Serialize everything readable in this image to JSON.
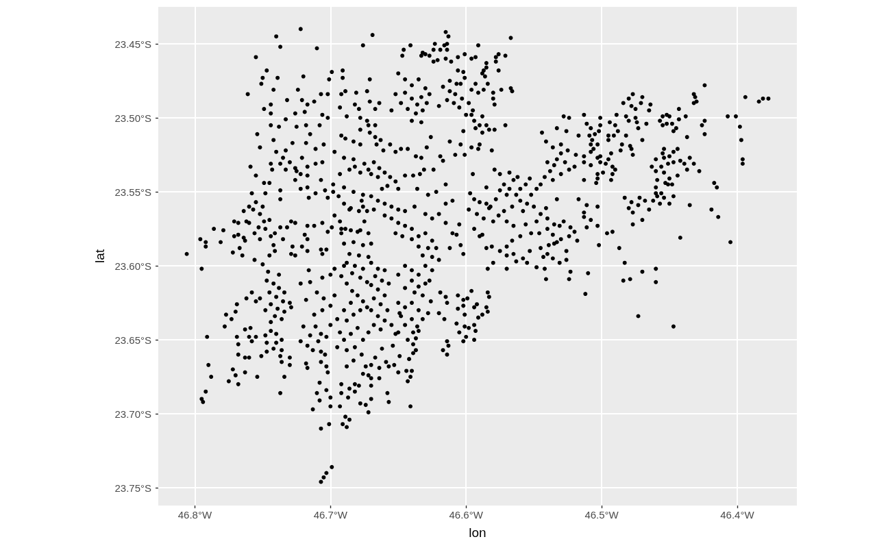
{
  "chart_data": {
    "type": "scatter",
    "xlabel": "lon",
    "ylabel": "lat",
    "xlim": [
      -46.827,
      -46.356
    ],
    "ylim": [
      -23.762,
      -23.425
    ],
    "xticks": [
      {
        "value": -46.8,
        "label": "46.8°W"
      },
      {
        "value": -46.7,
        "label": "46.7°W"
      },
      {
        "value": -46.6,
        "label": "46.6°W"
      },
      {
        "value": -46.5,
        "label": "46.5°W"
      },
      {
        "value": -46.4,
        "label": "46.4°W"
      }
    ],
    "yticks": [
      {
        "value": -23.75,
        "label": "23.75°S"
      },
      {
        "value": -23.7,
        "label": "23.70°S"
      },
      {
        "value": -23.65,
        "label": "23.65°S"
      },
      {
        "value": -23.6,
        "label": "23.60°S"
      },
      {
        "value": -23.55,
        "label": "23.55°S"
      },
      {
        "value": -23.5,
        "label": "23.50°S"
      },
      {
        "value": -23.45,
        "label": "23.45°S"
      }
    ],
    "grid": true,
    "marker": "circle",
    "series": [
      {
        "color": "#000000",
        "x": [
          -46.806,
          -46.796,
          -46.792,
          -46.792,
          -46.795,
          -46.786,
          -46.779,
          -46.781,
          -46.791,
          -46.79,
          -46.788,
          -46.792,
          -46.795,
          -46.794,
          -46.722,
          -46.74,
          -46.737,
          -46.71,
          -46.755,
          -46.747,
          -46.75,
          -46.751,
          -46.739,
          -46.761,
          -46.742,
          -46.72,
          -46.744,
          -46.744,
          -46.749,
          -46.744,
          -46.754,
          -46.752,
          -46.742,
          -46.733,
          -46.738,
          -46.732,
          -46.724,
          -46.721,
          -46.717,
          -46.726,
          -46.719,
          -46.725,
          -46.718,
          -46.715,
          -46.712,
          -46.707,
          -46.702,
          -46.706,
          -46.702,
          -46.708,
          -46.699,
          -46.691,
          -46.701,
          -46.691,
          -46.692,
          -46.689,
          -46.693,
          -46.688,
          -46.681,
          -46.679,
          -46.678,
          -46.682,
          -46.676,
          -46.669,
          -46.671,
          -46.673,
          -46.678,
          -46.672,
          -46.692,
          -46.689,
          -46.683,
          -46.678,
          -46.705,
          -46.711,
          -46.718,
          -46.728,
          -46.74,
          -46.735,
          -46.73,
          -46.726,
          -46.722,
          -46.733,
          -46.737,
          -46.733,
          -46.725,
          -46.717,
          -46.717,
          -46.721,
          -46.706,
          -46.707,
          -46.711,
          -46.726,
          -46.722,
          -46.716,
          -46.711,
          -46.704,
          -46.702,
          -46.717,
          -46.697,
          -46.69,
          -46.683,
          -46.675,
          -46.672,
          -46.678,
          -46.686,
          -46.693,
          -46.682,
          -46.698,
          -46.69,
          -46.683,
          -46.676,
          -46.698,
          -46.694,
          -46.69,
          -46.685,
          -46.679,
          -46.676,
          -46.677,
          -46.697,
          -46.693,
          -46.692,
          -46.686,
          -46.673,
          -46.668,
          -46.675,
          -46.699,
          -46.689,
          -46.68,
          -46.758,
          -46.76,
          -46.757,
          -46.755,
          -46.749,
          -46.745,
          -46.748,
          -46.755,
          -46.759,
          -46.744,
          -46.743,
          -46.737,
          -46.737,
          -46.764,
          -46.752,
          -46.75,
          -46.771,
          -46.768,
          -46.762,
          -46.76,
          -46.771,
          -46.768,
          -46.764,
          -46.763,
          -46.767,
          -46.772,
          -46.765,
          -46.756,
          -46.752,
          -46.753,
          -46.749,
          -46.745,
          -46.748,
          -46.744,
          -46.741,
          -46.737,
          -46.742,
          -46.741,
          -46.745,
          -46.735,
          -46.732,
          -46.729,
          -46.726,
          -46.717,
          -46.712,
          -46.706,
          -46.702,
          -46.719,
          -46.717,
          -46.721,
          -46.717,
          -46.728,
          -46.729,
          -46.726,
          -46.707,
          -46.703,
          -46.706,
          -46.692,
          -46.685,
          -46.678,
          -46.672,
          -46.69,
          -46.683,
          -46.676,
          -46.67,
          -46.686,
          -46.679,
          -46.672,
          -46.615,
          -46.613,
          -46.614,
          -46.616,
          -46.614,
          -46.623,
          -46.624,
          -46.619,
          -46.641,
          -46.646,
          -46.647,
          -46.632,
          -46.63,
          -46.627,
          -46.633,
          -46.624,
          -46.621,
          -46.615,
          -46.611,
          -46.606,
          -46.601,
          -46.596,
          -46.593,
          -46.591,
          -46.578,
          -46.576,
          -46.571,
          -46.578,
          -46.585,
          -46.585,
          -46.576,
          -46.587,
          -46.588,
          -46.586,
          -46.567,
          -46.574,
          -46.567,
          -46.566,
          -46.58,
          -46.58,
          -46.579,
          -46.584,
          -46.587,
          -46.591,
          -46.593,
          -46.596,
          -46.601,
          -46.602,
          -46.606,
          -46.612,
          -46.607,
          -46.604,
          -46.65,
          -46.645,
          -46.64,
          -46.635,
          -46.63,
          -46.645,
          -46.64,
          -46.633,
          -46.627,
          -46.636,
          -46.629,
          -46.643,
          -46.637,
          -46.632,
          -46.648,
          -46.652,
          -46.655,
          -46.64,
          -46.633,
          -46.617,
          -46.612,
          -46.608,
          -46.603,
          -46.614,
          -46.609,
          -46.605,
          -46.62,
          -46.598,
          -46.595,
          -46.6,
          -46.596,
          -46.588,
          -46.594,
          -46.593,
          -46.59,
          -46.585,
          -46.583,
          -46.579,
          -46.588,
          -46.602,
          -46.596,
          -46.591,
          -46.59,
          -46.571,
          -46.604,
          -46.608,
          -46.601,
          -46.612,
          -46.626,
          -46.629,
          -46.637,
          -46.633,
          -46.619,
          -46.617,
          -46.631,
          -46.624,
          -46.634,
          -46.643,
          -46.648,
          -46.652,
          -46.656,
          -46.666,
          -46.661,
          -46.671,
          -46.667,
          -46.663,
          -46.667,
          -46.673,
          -46.671,
          -46.664,
          -46.667,
          -46.668,
          -46.664,
          -46.66,
          -46.656,
          -46.652,
          -46.665,
          -46.67,
          -46.658,
          -46.662,
          -46.65,
          -46.645,
          -46.639,
          -46.67,
          -46.665,
          -46.66,
          -46.655,
          -46.65,
          -46.645,
          -46.66,
          -46.655,
          -46.65,
          -46.645,
          -46.64,
          -46.652,
          -46.647,
          -46.64,
          -46.635,
          -46.63,
          -46.625,
          -46.635,
          -46.628,
          -46.622,
          -46.632,
          -46.625,
          -46.62,
          -46.638,
          -46.63,
          -46.625,
          -46.62,
          -46.615,
          -46.636,
          -46.628,
          -46.622,
          -46.615,
          -46.61,
          -46.615,
          -46.605,
          -46.607,
          -46.604,
          -46.602,
          -46.61,
          -46.612,
          -46.597,
          -46.594,
          -46.59,
          -46.585,
          -46.598,
          -46.592,
          -46.587,
          -46.582,
          -46.578,
          -46.575,
          -46.572,
          -46.568,
          -46.565,
          -46.57,
          -46.563,
          -46.56,
          -46.566,
          -46.572,
          -46.576,
          -46.58,
          -46.57,
          -46.565,
          -46.558,
          -46.555,
          -46.552,
          -46.548,
          -46.545,
          -46.542,
          -46.538,
          -46.535,
          -46.54,
          -46.533,
          -46.53,
          -46.527,
          -46.524,
          -46.52,
          -46.53,
          -46.536,
          -46.55,
          -46.545,
          -46.54,
          -46.548,
          -46.556,
          -46.552,
          -46.546,
          -46.54,
          -46.535,
          -46.528,
          -46.56,
          -46.566,
          -46.57,
          -46.575,
          -46.565,
          -46.558,
          -46.553,
          -46.545,
          -46.54,
          -46.535,
          -46.53,
          -46.524,
          -46.52,
          -46.518,
          -46.526,
          -46.58,
          -46.585,
          -46.59,
          -46.594,
          -46.544,
          -46.533,
          -46.526,
          -46.517,
          -46.528,
          -46.524,
          -46.513,
          -46.541,
          -46.536,
          -46.53,
          -46.525,
          -46.519,
          -46.595,
          -46.579,
          -46.581,
          -46.585,
          -46.583,
          -46.588,
          -46.581,
          -46.57,
          -46.533,
          -46.517,
          -46.513,
          -46.523,
          -46.531,
          -46.536,
          -46.539,
          -46.533,
          -46.541,
          -46.575,
          -46.568,
          -46.562,
          -46.556,
          -46.56,
          -46.553,
          -46.424,
          -46.432,
          -46.431,
          -46.432,
          -46.43,
          -46.394,
          -46.384,
          -46.381,
          -46.377,
          -46.407,
          -46.401,
          -46.398,
          -46.397,
          -46.396,
          -46.396,
          -46.424,
          -46.426,
          -46.424,
          -46.438,
          -46.437,
          -46.443,
          -46.443,
          -46.445,
          -46.447,
          -46.452,
          -46.45,
          -46.455,
          -46.457,
          -46.455,
          -46.452,
          -46.448,
          -46.477,
          -46.48,
          -46.484,
          -46.478,
          -46.475,
          -46.47,
          -46.471,
          -46.464,
          -46.465,
          -46.482,
          -46.48,
          -46.475,
          -46.474,
          -46.473,
          -46.467,
          -46.47,
          -46.489,
          -46.494,
          -46.49,
          -46.488,
          -46.501,
          -46.501,
          -46.502,
          -46.491,
          -46.495,
          -46.495,
          -46.482,
          -46.485,
          -46.479,
          -46.478,
          -46.477,
          -46.486,
          -46.493,
          -46.495,
          -46.497,
          -46.492,
          -46.49,
          -46.492,
          -46.493,
          -46.499,
          -46.501,
          -46.501,
          -46.511,
          -46.508,
          -46.505,
          -46.509,
          -46.507,
          -46.508,
          -46.503,
          -46.506,
          -46.508,
          -46.503,
          -46.513,
          -46.513,
          -46.508,
          -46.503,
          -46.503,
          -46.504,
          -46.513,
          -46.454,
          -46.455,
          -46.454,
          -46.45,
          -46.447,
          -46.444,
          -46.46,
          -46.463,
          -46.46,
          -46.456,
          -46.451,
          -46.447,
          -46.442,
          -46.454,
          -46.444,
          -46.459,
          -46.453,
          -46.451,
          -46.45,
          -46.448,
          -46.46,
          -46.46,
          -46.456,
          -46.459,
          -46.454,
          -46.447,
          -46.462,
          -46.457,
          -46.45,
          -46.439,
          -46.435,
          -46.432,
          -46.428,
          -46.437,
          -46.417,
          -46.415,
          -46.435,
          -46.419,
          -46.414,
          -46.442,
          -46.405,
          -46.483,
          -46.478,
          -46.48,
          -46.473,
          -46.472,
          -46.468,
          -46.477,
          -46.47,
          -46.465,
          -46.477,
          -46.511,
          -46.503,
          -46.513,
          -46.508,
          -46.503,
          -46.511,
          -46.496,
          -46.492,
          -46.502,
          -46.487,
          -46.483,
          -46.51,
          -46.512,
          -46.47,
          -46.46,
          -46.484,
          -46.479,
          -46.46,
          -46.473,
          -46.447,
          -46.584,
          -46.555,
          -46.548,
          -46.542,
          -46.541,
          -46.543,
          -46.536,
          -46.531,
          -46.526,
          -46.523,
          -46.524,
          -46.57,
          -46.563,
          -46.584,
          -46.583,
          -46.585,
          -46.584,
          -46.588,
          -46.591,
          -46.594,
          -46.592,
          -46.594,
          -46.593,
          -46.594,
          -46.598,
          -46.601,
          -46.6,
          -46.602,
          -46.605,
          -46.607,
          -46.601,
          -46.602,
          -46.599,
          -46.596,
          -46.614,
          -46.613,
          -46.617,
          -46.614,
          -46.616,
          -46.62,
          -46.628,
          -46.632,
          -46.636,
          -46.635,
          -46.639,
          -46.637,
          -46.643,
          -46.639,
          -46.637,
          -46.639,
          -46.642,
          -46.649,
          -46.653,
          -46.657,
          -46.659,
          -46.664,
          -46.65,
          -46.644,
          -46.64,
          -46.641,
          -46.643,
          -46.664,
          -46.658,
          -46.657,
          -46.641,
          -46.67,
          -46.649,
          -46.65,
          -46.654,
          -46.662,
          -46.667,
          -46.67,
          -46.67,
          -46.67,
          -46.619,
          -46.615,
          -46.614,
          -46.606,
          -46.602,
          -46.606,
          -46.626,
          -46.67,
          -46.665,
          -46.66,
          -46.667,
          -46.662,
          -46.657,
          -46.67,
          -46.665,
          -46.66,
          -46.668,
          -46.663,
          -46.67,
          -46.665,
          -46.66,
          -46.668,
          -46.663,
          -46.658,
          -46.65,
          -46.645,
          -46.64,
          -46.635,
          -46.63,
          -46.625,
          -46.64,
          -46.635,
          -46.63,
          -46.638,
          -46.632,
          -46.627,
          -46.645,
          -46.65,
          -46.645,
          -46.64,
          -46.635,
          -46.64,
          -46.645,
          -46.648,
          -46.655,
          -46.652,
          -46.756,
          -46.75,
          -46.762,
          -46.758,
          -46.755,
          -46.769,
          -46.77,
          -46.777,
          -46.773,
          -46.778,
          -46.759,
          -46.763,
          -46.769,
          -46.768,
          -46.76,
          -46.758,
          -46.755,
          -46.768,
          -46.763,
          -46.76,
          -46.772,
          -46.77,
          -46.775,
          -46.768,
          -46.763,
          -46.754,
          -46.751,
          -46.747,
          -46.747,
          -46.748,
          -46.744,
          -46.74,
          -46.744,
          -46.742,
          -46.74,
          -46.736,
          -46.736,
          -46.737,
          -46.736,
          -46.73,
          -46.73,
          -46.734,
          -46.737,
          -46.722,
          -46.717,
          -46.713,
          -46.718,
          -46.717,
          -46.72,
          -46.711,
          -46.715,
          -46.709,
          -46.707,
          -46.707,
          -46.704,
          -46.707,
          -46.703,
          -46.702,
          -46.708,
          -46.71,
          -46.708,
          -46.703,
          -46.7,
          -46.7,
          -46.713,
          -46.707,
          -46.701,
          -46.699,
          -46.703,
          -46.705,
          -46.707,
          -46.689,
          -46.686,
          -46.691,
          -46.688,
          -46.693,
          -46.687,
          -46.692,
          -46.692,
          -46.686,
          -46.682,
          -46.678,
          -46.674,
          -46.672,
          -46.679,
          -46.682,
          -46.672,
          -46.747,
          -46.742,
          -46.738,
          -46.734,
          -46.745,
          -46.74,
          -46.735,
          -46.73,
          -46.744,
          -46.739,
          -46.734,
          -46.729,
          -46.741,
          -46.736,
          -46.748,
          -46.746,
          -46.738,
          -46.752,
          -46.715,
          -46.71,
          -46.705,
          -46.7,
          -46.706,
          -46.712,
          -46.718,
          -46.722,
          -46.716,
          -46.706,
          -46.7,
          -46.697,
          -46.692,
          -46.688,
          -46.684,
          -46.68,
          -46.676,
          -46.685,
          -46.69,
          -46.695,
          -46.688,
          -46.683,
          -46.678,
          -46.673,
          -46.68,
          -46.685,
          -46.69,
          -46.695,
          -46.688,
          -46.682,
          -46.676,
          -46.672,
          -46.677,
          -46.683,
          -46.688,
          -46.674,
          -46.676,
          -46.693,
          -46.697,
          -46.7,
          -46.703,
          -46.688,
          -46.682,
          -46.676,
          -46.684,
          -46.678,
          -46.673,
          -46.69
        ],
        "values": [
          -23.592,
          -23.582,
          -23.584,
          -23.587,
          -23.602,
          -23.575,
          -23.576,
          -23.584,
          -23.648,
          -23.667,
          -23.675,
          -23.685,
          -23.69,
          -23.692,
          -23.44,
          -23.445,
          -23.452,
          -23.453,
          -23.459,
          -23.468,
          -23.473,
          -23.477,
          -23.473,
          -23.484,
          -23.481,
          -23.472,
          -23.491,
          -23.497,
          -23.494,
          -23.505,
          -23.511,
          -23.52,
          -23.515,
          -23.501,
          -23.506,
          -23.488,
          -23.481,
          -23.488,
          -23.491,
          -23.497,
          -23.496,
          -23.506,
          -23.505,
          -23.511,
          -23.489,
          -23.484,
          -23.484,
          -23.498,
          -23.5,
          -23.505,
          -23.469,
          -23.468,
          -23.474,
          -23.473,
          -23.484,
          -23.482,
          -23.493,
          -23.499,
          -23.483,
          -23.494,
          -23.5,
          -23.491,
          -23.451,
          -23.444,
          -23.474,
          -23.482,
          -23.508,
          -23.505,
          -23.512,
          -23.514,
          -23.516,
          -23.518,
          -23.518,
          -23.521,
          -23.517,
          -23.517,
          -23.523,
          -23.527,
          -23.53,
          -23.534,
          -23.538,
          -23.522,
          -23.531,
          -23.535,
          -23.536,
          -23.533,
          -23.539,
          -23.527,
          -23.53,
          -23.542,
          -23.531,
          -23.542,
          -23.548,
          -23.554,
          -23.551,
          -23.549,
          -23.554,
          -23.547,
          -23.523,
          -23.527,
          -23.528,
          -23.531,
          -23.535,
          -23.537,
          -23.535,
          -23.538,
          -23.533,
          -23.545,
          -23.547,
          -23.55,
          -23.552,
          -23.55,
          -23.553,
          -23.558,
          -23.561,
          -23.563,
          -23.56,
          -23.556,
          -23.566,
          -23.57,
          -23.575,
          -23.562,
          -23.563,
          -23.562,
          -23.57,
          -23.574,
          -23.575,
          -23.577,
          -23.551,
          -23.56,
          -23.562,
          -23.557,
          -23.544,
          -23.544,
          -23.551,
          -23.539,
          -23.533,
          -23.531,
          -23.535,
          -23.549,
          -23.555,
          -23.563,
          -23.565,
          -23.56,
          -23.57,
          -23.571,
          -23.57,
          -23.571,
          -23.58,
          -23.579,
          -23.581,
          -23.583,
          -23.588,
          -23.591,
          -23.593,
          -23.578,
          -23.582,
          -23.574,
          -23.57,
          -23.569,
          -23.575,
          -23.58,
          -23.578,
          -23.574,
          -23.586,
          -23.59,
          -23.593,
          -23.582,
          -23.574,
          -23.57,
          -23.571,
          -23.573,
          -23.573,
          -23.571,
          -23.577,
          -23.579,
          -23.582,
          -23.587,
          -23.59,
          -23.587,
          -23.592,
          -23.593,
          -23.589,
          -23.589,
          -23.592,
          -23.578,
          -23.576,
          -23.576,
          -23.578,
          -23.585,
          -23.584,
          -23.586,
          -23.585,
          -23.592,
          -23.593,
          -23.594,
          -23.442,
          -23.445,
          -23.45,
          -23.451,
          -23.454,
          -23.45,
          -23.454,
          -23.454,
          -23.451,
          -23.454,
          -23.458,
          -23.456,
          -23.457,
          -23.458,
          -23.458,
          -23.462,
          -23.461,
          -23.46,
          -23.462,
          -23.459,
          -23.457,
          -23.46,
          -23.459,
          -23.451,
          -23.459,
          -23.457,
          -23.458,
          -23.462,
          -23.463,
          -23.466,
          -23.468,
          -23.468,
          -23.47,
          -23.472,
          -23.446,
          -23.481,
          -23.48,
          -23.482,
          -23.483,
          -23.487,
          -23.491,
          -23.477,
          -23.481,
          -23.483,
          -23.477,
          -23.481,
          -23.473,
          -23.469,
          -23.468,
          -23.475,
          -23.477,
          -23.477,
          -23.47,
          -23.474,
          -23.478,
          -23.474,
          -23.48,
          -23.483,
          -23.487,
          -23.486,
          -23.484,
          -23.491,
          -23.49,
          -23.494,
          -23.497,
          -23.495,
          -23.49,
          -23.484,
          -23.495,
          -23.502,
          -23.503,
          -23.479,
          -23.482,
          -23.484,
          -23.487,
          -23.488,
          -23.49,
          -23.493,
          -23.492,
          -23.49,
          -23.495,
          -23.498,
          -23.498,
          -23.499,
          -23.502,
          -23.507,
          -23.505,
          -23.505,
          -23.508,
          -23.508,
          -23.51,
          -23.509,
          -23.52,
          -23.521,
          -23.518,
          -23.505,
          -23.518,
          -23.525,
          -23.525,
          -23.516,
          -23.513,
          -23.52,
          -23.526,
          -23.527,
          -23.526,
          -23.529,
          -23.535,
          -23.535,
          -23.538,
          -23.521,
          -23.521,
          -23.523,
          -23.518,
          -23.518,
          -23.522,
          -23.51,
          -23.513,
          -23.515,
          -23.505,
          -23.502,
          -23.489,
          -23.49,
          -23.494,
          -23.53,
          -23.534,
          -23.537,
          -23.54,
          -23.543,
          -23.54,
          -23.538,
          -23.546,
          -23.548,
          -23.548,
          -23.539,
          -23.539,
          -23.553,
          -23.556,
          -23.558,
          -23.56,
          -23.562,
          -23.563,
          -23.566,
          -23.568,
          -23.571,
          -23.573,
          -23.575,
          -23.578,
          -23.58,
          -23.582,
          -23.58,
          -23.578,
          -23.583,
          -23.587,
          -23.588,
          -23.588,
          -23.593,
          -23.594,
          -23.596,
          -23.56,
          -23.565,
          -23.568,
          -23.565,
          -23.571,
          -23.548,
          -23.552,
          -23.55,
          -23.545,
          -23.556,
          -23.558,
          -23.572,
          -23.579,
          -23.586,
          -23.592,
          -23.578,
          -23.588,
          -23.551,
          -23.555,
          -23.557,
          -23.558,
          -23.562,
          -23.565,
          -23.568,
          -23.56,
          -23.555,
          -23.549,
          -23.545,
          -23.548,
          -23.542,
          -23.552,
          -23.552,
          -23.556,
          -23.56,
          -23.563,
          -23.566,
          -23.57,
          -23.57,
          -23.573,
          -23.563,
          -23.558,
          -23.552,
          -23.548,
          -23.545,
          -23.54,
          -23.536,
          -23.532,
          -23.53,
          -23.528,
          -23.524,
          -23.53,
          -23.535,
          -23.533,
          -23.538,
          -23.542,
          -23.56,
          -23.565,
          -23.568,
          -23.57,
          -23.572,
          -23.578,
          -23.578,
          -23.575,
          -23.572,
          -23.57,
          -23.58,
          -23.583,
          -23.587,
          -23.59,
          -23.592,
          -23.595,
          -23.59,
          -23.588,
          -23.592,
          -23.585,
          -23.582,
          -23.58,
          -23.577,
          -23.583,
          -23.59,
          -23.598,
          -23.588,
          -23.58,
          -23.575,
          -23.51,
          -23.507,
          -23.509,
          -23.512,
          -23.499,
          -23.5,
          -23.498,
          -23.516,
          -23.52,
          -23.518,
          -23.522,
          -23.525,
          -23.538,
          -23.535,
          -23.522,
          -23.547,
          -23.561,
          -23.579,
          -23.587,
          -23.593,
          -23.555,
          -23.555,
          -23.564,
          -23.574,
          -23.573,
          -23.579,
          -23.586,
          -23.584,
          -23.561,
          -23.538,
          -23.537,
          -23.54,
          -23.545,
          -23.548,
          -23.541,
          -23.478,
          -23.484,
          -23.486,
          -23.49,
          -23.489,
          -23.486,
          -23.489,
          -23.487,
          -23.487,
          -23.499,
          -23.499,
          -23.506,
          -23.515,
          -23.528,
          -23.531,
          -23.502,
          -23.505,
          -23.511,
          -23.499,
          -23.513,
          -23.494,
          -23.501,
          -23.507,
          -23.509,
          -23.498,
          -23.499,
          -23.499,
          -23.502,
          -23.505,
          -23.504,
          -23.504,
          -23.484,
          -23.487,
          -23.49,
          -23.492,
          -23.494,
          -23.486,
          -23.49,
          -23.491,
          -23.495,
          -23.499,
          -23.502,
          -23.5,
          -23.503,
          -23.507,
          -23.504,
          -23.515,
          -23.498,
          -23.503,
          -23.505,
          -23.509,
          -23.5,
          -23.505,
          -23.509,
          -23.512,
          -23.512,
          -23.515,
          -23.512,
          -23.518,
          -23.519,
          -23.521,
          -23.525,
          -23.522,
          -23.524,
          -23.528,
          -23.531,
          -23.533,
          -23.535,
          -23.538,
          -23.542,
          -23.537,
          -23.526,
          -23.53,
          -23.504,
          -23.507,
          -23.511,
          -23.512,
          -23.515,
          -23.518,
          -23.518,
          -23.521,
          -23.523,
          -23.527,
          -23.526,
          -23.53,
          -23.532,
          -23.538,
          -23.541,
          -23.544,
          -23.542,
          -23.521,
          -23.524,
          -23.527,
          -23.526,
          -23.523,
          -23.521,
          -23.528,
          -23.533,
          -23.536,
          -23.533,
          -23.531,
          -23.53,
          -23.529,
          -23.537,
          -23.539,
          -23.542,
          -23.544,
          -23.545,
          -23.541,
          -23.545,
          -23.547,
          -23.551,
          -23.551,
          -23.553,
          -23.554,
          -23.553,
          -23.556,
          -23.558,
          -23.558,
          -23.531,
          -23.527,
          -23.531,
          -23.536,
          -23.535,
          -23.544,
          -23.547,
          -23.559,
          -23.562,
          -23.567,
          -23.581,
          -23.584,
          -23.554,
          -23.557,
          -23.561,
          -23.559,
          -23.554,
          -23.556,
          -23.564,
          -23.569,
          -23.562,
          -23.572,
          -23.559,
          -23.56,
          -23.567,
          -23.569,
          -23.573,
          -23.574,
          -23.578,
          -23.577,
          -23.586,
          -23.588,
          -23.598,
          -23.605,
          -23.619,
          -23.604,
          -23.602,
          -23.61,
          -23.609,
          -23.611,
          -23.634,
          -23.641,
          -23.602,
          -23.598,
          -23.601,
          -23.602,
          -23.609,
          -23.594,
          -23.595,
          -23.598,
          -23.596,
          -23.604,
          -23.609,
          -23.602,
          -23.597,
          -23.618,
          -23.621,
          -23.628,
          -23.631,
          -23.633,
          -23.635,
          -23.628,
          -23.626,
          -23.64,
          -23.644,
          -23.65,
          -23.642,
          -23.641,
          -23.648,
          -23.651,
          -23.645,
          -23.639,
          -23.633,
          -23.623,
          -23.622,
          -23.617,
          -23.651,
          -23.654,
          -23.657,
          -23.66,
          -23.636,
          -23.632,
          -23.632,
          -23.636,
          -23.641,
          -23.644,
          -23.645,
          -23.649,
          -23.65,
          -23.653,
          -23.657,
          -23.659,
          -23.663,
          -23.661,
          -23.667,
          -23.668,
          -23.665,
          -23.669,
          -23.672,
          -23.671,
          -23.671,
          -23.675,
          -23.678,
          -23.676,
          -23.686,
          -23.692,
          -23.695,
          -23.69,
          -23.632,
          -23.645,
          -23.654,
          -23.656,
          -23.662,
          -23.667,
          -23.676,
          -23.681,
          -23.618,
          -23.621,
          -23.625,
          -23.629,
          -23.627,
          -23.62,
          -23.624,
          -23.598,
          -23.602,
          -23.603,
          -23.607,
          -23.61,
          -23.612,
          -23.613,
          -23.616,
          -23.62,
          -23.622,
          -23.626,
          -23.63,
          -23.634,
          -23.637,
          -23.64,
          -23.643,
          -23.63,
          -23.606,
          -23.6,
          -23.603,
          -23.606,
          -23.6,
          -23.603,
          -23.61,
          -23.614,
          -23.612,
          -23.618,
          -23.62,
          -23.61,
          -23.615,
          -23.625,
          -23.628,
          -23.625,
          -23.63,
          -23.636,
          -23.64,
          -23.634,
          -23.64,
          -23.646,
          -23.596,
          -23.599,
          -23.622,
          -23.618,
          -23.624,
          -23.626,
          -23.631,
          -23.633,
          -23.636,
          -23.641,
          -23.642,
          -23.643,
          -23.648,
          -23.653,
          -23.648,
          -23.651,
          -23.648,
          -23.66,
          -23.662,
          -23.662,
          -23.67,
          -23.674,
          -23.678,
          -23.68,
          -23.672,
          -23.675,
          -23.661,
          -23.658,
          -23.652,
          -23.647,
          -23.644,
          -23.646,
          -23.638,
          -23.656,
          -23.652,
          -23.65,
          -23.657,
          -23.661,
          -23.665,
          -23.662,
          -23.667,
          -23.675,
          -23.686,
          -23.651,
          -23.654,
          -23.657,
          -23.666,
          -23.669,
          -23.641,
          -23.641,
          -23.647,
          -23.651,
          -23.646,
          -23.658,
          -23.66,
          -23.665,
          -23.668,
          -23.672,
          -23.679,
          -23.686,
          -23.691,
          -23.684,
          -23.689,
          -23.695,
          -23.697,
          -23.71,
          -23.707,
          -23.736,
          -23.74,
          -23.743,
          -23.746,
          -23.702,
          -23.704,
          -23.707,
          -23.709,
          -23.695,
          -23.689,
          -23.686,
          -23.68,
          -23.683,
          -23.685,
          -23.693,
          -23.694,
          -23.699,
          -23.681,
          -23.68,
          -23.674,
          -23.61,
          -23.612,
          -23.615,
          -23.618,
          -23.618,
          -23.621,
          -23.624,
          -23.625,
          -23.626,
          -23.629,
          -23.631,
          -23.628,
          -23.634,
          -23.636,
          -23.63,
          -23.604,
          -23.606,
          -23.622,
          -23.611,
          -23.618,
          -23.622,
          -23.627,
          -23.63,
          -23.633,
          -23.623,
          -23.612,
          -23.603,
          -23.608,
          -23.606,
          -23.602,
          -23.607,
          -23.612,
          -23.617,
          -23.62,
          -23.624,
          -23.625,
          -23.63,
          -23.636,
          -23.637,
          -23.633,
          -23.63,
          -23.628,
          -23.642,
          -23.646,
          -23.65,
          -23.655,
          -23.657,
          -23.655,
          -23.65,
          -23.645,
          -23.66,
          -23.664,
          -23.668,
          -23.668,
          -23.673,
          -23.645,
          -23.62,
          -23.64,
          -23.648,
          -23.598,
          -23.6,
          -23.602,
          -23.605,
          -23.608,
          -23.611,
          -23.6
        ]
      }
    ]
  }
}
